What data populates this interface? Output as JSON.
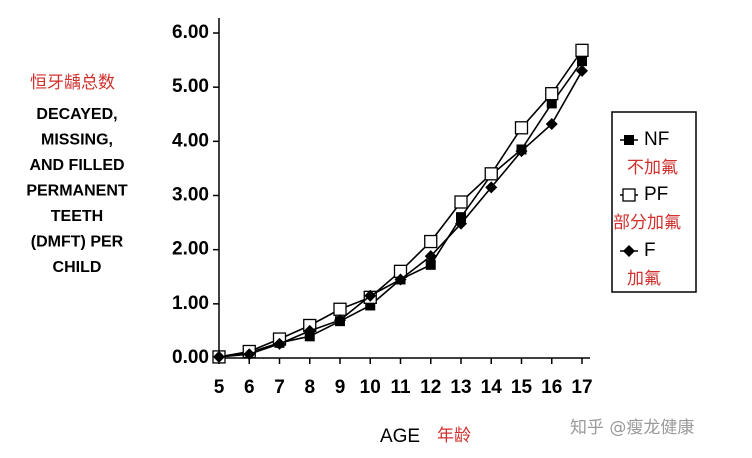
{
  "chart_data": {
    "type": "line",
    "annotation": "恒牙龋总数",
    "ylabel": [
      "DECAYED,",
      "MISSING,",
      "AND FILLED",
      "PERMANENT",
      "TEETH",
      "(DMFT) PER",
      "CHILD"
    ],
    "xlabel": "AGE",
    "xlabel_note": "年龄",
    "watermark": "知乎 @瘦龙健康",
    "x": [
      5,
      6,
      7,
      8,
      9,
      10,
      11,
      12,
      13,
      14,
      15,
      16,
      17
    ],
    "series": [
      {
        "name": "NF",
        "note": "不加氟",
        "color": "#000000",
        "marker": "square-filled",
        "values": [
          0.02,
          0.1,
          0.28,
          0.4,
          0.68,
          0.97,
          1.45,
          1.72,
          2.6,
          3.38,
          3.85,
          4.7,
          5.48
        ]
      },
      {
        "name": "PF",
        "note": "部分加氟",
        "color": "#000000",
        "marker": "square-open",
        "values": [
          0.02,
          0.12,
          0.35,
          0.6,
          0.9,
          1.12,
          1.6,
          2.15,
          2.88,
          3.4,
          4.25,
          4.88,
          5.68
        ]
      },
      {
        "name": "F",
        "note": "加氟",
        "color": "#000000",
        "marker": "diamond",
        "values": [
          0.02,
          0.07,
          0.26,
          0.5,
          0.7,
          1.15,
          1.45,
          1.88,
          2.48,
          3.15,
          3.82,
          4.32,
          5.3
        ]
      }
    ],
    "xlim": [
      5,
      17
    ],
    "xticks": [
      5,
      6,
      7,
      8,
      9,
      10,
      11,
      12,
      13,
      14,
      15,
      16,
      17
    ],
    "ylim": [
      0,
      6
    ],
    "yticks": [
      {
        "value": 0,
        "label": "0.00"
      },
      {
        "value": 1,
        "label": "1.00"
      },
      {
        "value": 2,
        "label": "2.00"
      },
      {
        "value": 3,
        "label": "3.00"
      },
      {
        "value": 4,
        "label": "4.00"
      },
      {
        "value": 5,
        "label": "5.00"
      },
      {
        "value": 6,
        "label": "6.00"
      }
    ],
    "legend": "right"
  }
}
